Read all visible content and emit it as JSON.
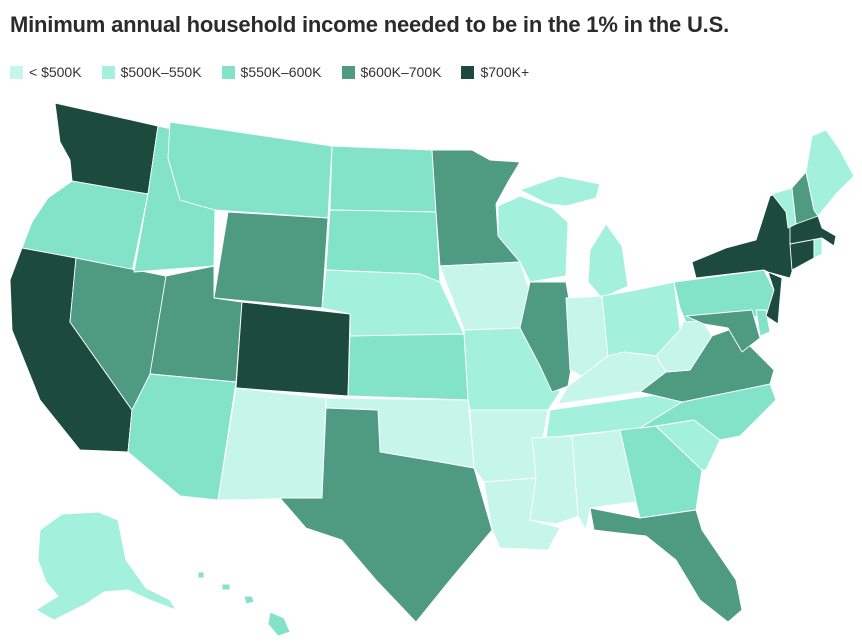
{
  "title": "Minimum annual household income needed to be in the 1% in the U.S.",
  "legend": [
    {
      "key": "t0",
      "label": "< $500K",
      "color": "#c6f5ea"
    },
    {
      "key": "t1",
      "label": "$500K–550K",
      "color": "#a3f1dd"
    },
    {
      "key": "t2",
      "label": "$550K–600K",
      "color": "#83e3c9"
    },
    {
      "key": "t3",
      "label": "$600K–700K",
      "color": "#4e9b82"
    },
    {
      "key": "t4",
      "label": "$700K+",
      "color": "#1c4b3d"
    }
  ],
  "states": {
    "WA": "t4",
    "OR": "t2",
    "CA": "t4",
    "NV": "t3",
    "ID": "t2",
    "MT": "t2",
    "WY": "t3",
    "UT": "t3",
    "AZ": "t2",
    "NM": "t0",
    "CO": "t4",
    "ND": "t2",
    "SD": "t2",
    "NE": "t1",
    "KS": "t2",
    "OK": "t0",
    "TX": "t3",
    "MN": "t3",
    "IA": "t0",
    "MO": "t1",
    "AR": "t0",
    "LA": "t0",
    "WI": "t1",
    "IL": "t3",
    "MI": "t1",
    "IN": "t0",
    "OH": "t1",
    "KY": "t0",
    "TN": "t1",
    "MS": "t0",
    "AL": "t0",
    "GA": "t2",
    "FL": "t3",
    "SC": "t1",
    "NC": "t2",
    "VA": "t3",
    "WV": "t0",
    "MD": "t3",
    "DE": "t2",
    "PA": "t2",
    "NJ": "t4",
    "NY": "t4",
    "CT": "t4",
    "RI": "t1",
    "MA": "t4",
    "VT": "t1",
    "NH": "t3",
    "ME": "t1",
    "AK": "t1",
    "HI": "t2"
  }
}
